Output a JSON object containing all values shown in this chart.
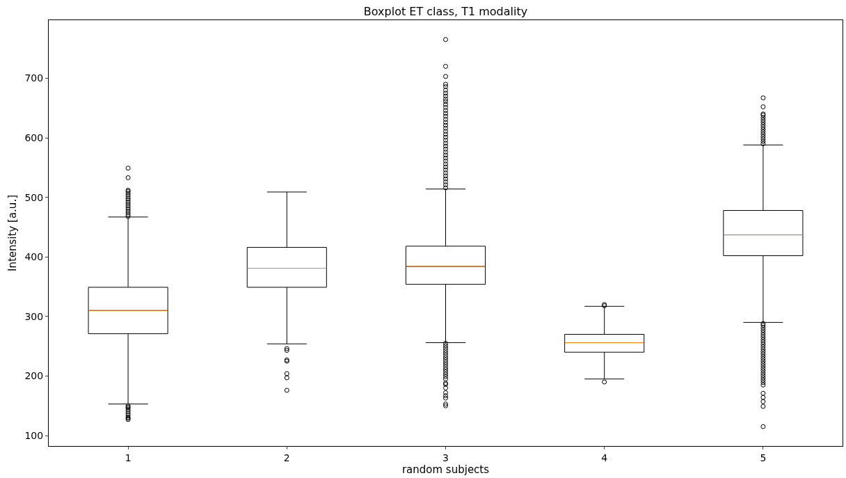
{
  "chart_data": {
    "type": "box",
    "title": "Boxplot ET class, T1 modality",
    "xlabel": "random subjects",
    "ylabel": "Intensity [a.u.]",
    "categories": [
      "1",
      "2",
      "3",
      "4",
      "5"
    ],
    "ylim": [
      82.5,
      797.5
    ],
    "yticks": [
      100,
      200,
      300,
      400,
      500,
      600,
      700
    ],
    "grid": false,
    "marker": "circle",
    "series": [
      {
        "color": "#000000",
        "boxes": [
          {
            "low": 153,
            "q1": 271,
            "median": 310,
            "q3": 349,
            "high": 467,
            "outliers": [
              127,
              129,
              131,
              134,
              137,
              140,
              143,
              146,
              148,
              150,
              468,
              471,
              474,
              477,
              480,
              483,
              486,
              489,
              492,
              495,
              498,
              501,
              504,
              507,
              510,
              512,
              533,
              549
            ]
          },
          {
            "low": 254,
            "q1": 349,
            "median": 381,
            "q3": 416,
            "high": 509,
            "outliers": [
              176,
              197,
              204,
              225,
              227,
              243,
              246
            ]
          },
          {
            "low": 256,
            "q1": 354,
            "median": 384,
            "q3": 418,
            "high": 514,
            "outliers": [
              150,
              153,
              163,
              167,
              172,
              180,
              186,
              188,
              195,
              199,
              203,
              207,
              211,
              215,
              219,
              223,
              227,
              231,
              235,
              239,
              243,
              247,
              251,
              255,
              516,
              521,
              526,
              531,
              536,
              541,
              546,
              551,
              556,
              561,
              566,
              571,
              576,
              581,
              586,
              591,
              596,
              601,
              606,
              611,
              616,
              621,
              626,
              631,
              636,
              641,
              646,
              651,
              656,
              661,
              665,
              670,
              675,
              680,
              686,
              690,
              703,
              720,
              765
            ]
          },
          {
            "low": 195,
            "q1": 240,
            "median": 256,
            "q3": 270,
            "high": 317,
            "outliers": [
              190,
              318,
              320
            ]
          },
          {
            "low": 290,
            "q1": 402,
            "median": 437,
            "q3": 478,
            "high": 588,
            "outliers": [
              115,
              149,
              157,
              164,
              171,
              185,
              189,
              193,
              197,
              201,
              205,
              209,
              213,
              217,
              221,
              225,
              229,
              233,
              237,
              241,
              245,
              249,
              253,
              257,
              261,
              265,
              269,
              273,
              277,
              281,
              285,
              288,
              590,
              594,
              598,
              602,
              606,
              610,
              614,
              618,
              622,
              626,
              630,
              634,
              638,
              640,
              652,
              667
            ]
          }
        ]
      }
    ]
  }
}
